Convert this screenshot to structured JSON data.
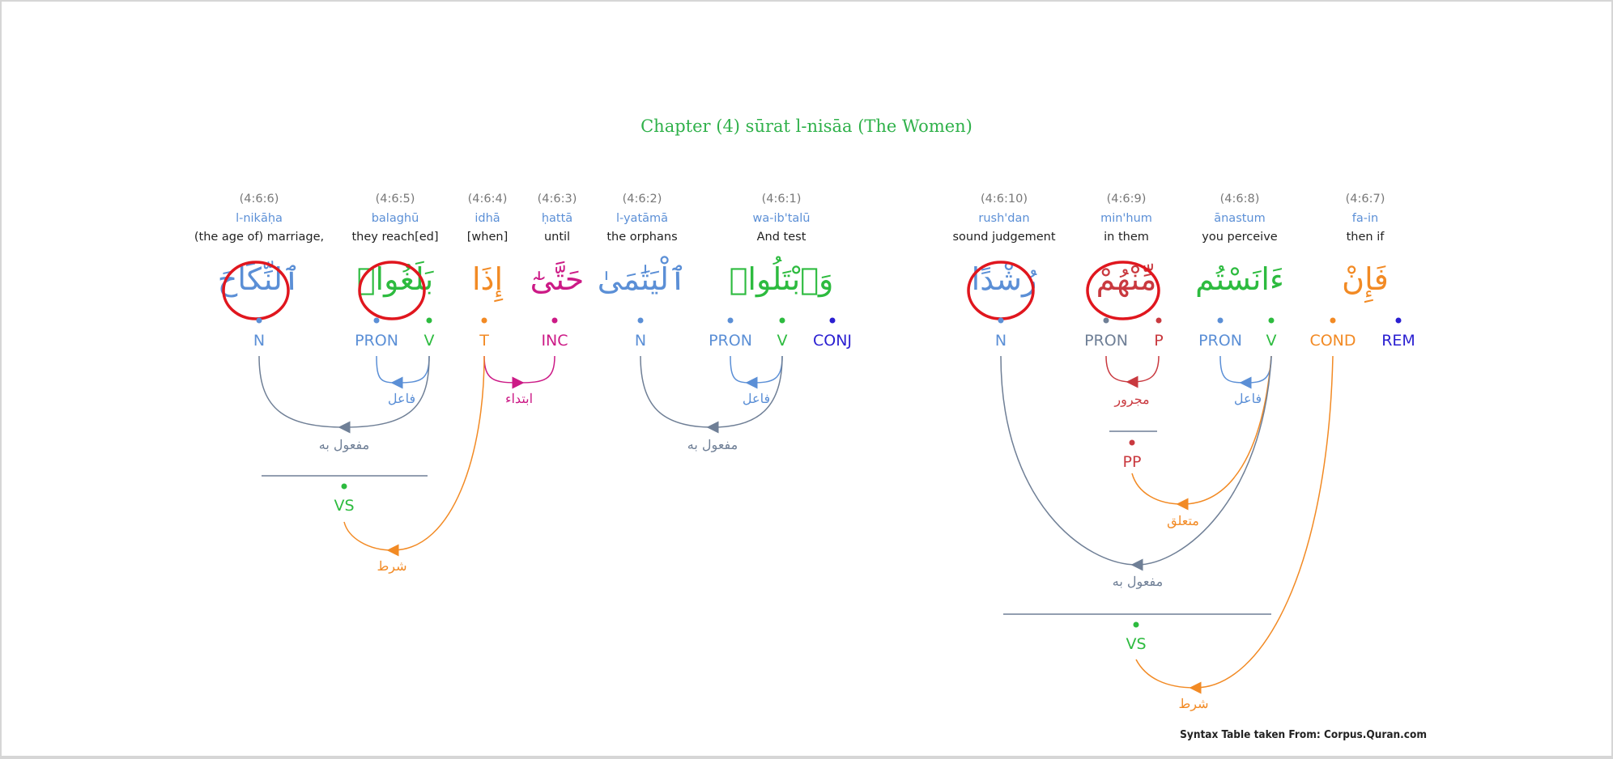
{
  "title": "Chapter (4) sūrat l-nisāa (The Women)",
  "credit": "Syntax Table taken From: Corpus.Quran.com",
  "colors": {
    "title": "#2fb14a",
    "noun": "#5b8fd6",
    "verb": "#2dbb3f",
    "pron": "#5b8fd6",
    "time": "#f28a24",
    "inc": "#cc1a86",
    "conj": "#2a1fd1",
    "prep": "#c9393f",
    "cond": "#f28a24",
    "rem": "#2a1fd1",
    "grey": "#6f7f96",
    "highlight": "#e0161e"
  },
  "words": [
    {
      "ref": "(4:6:6)",
      "translit": "l-nikāḥa",
      "gloss": "(the age of) marriage,",
      "arabic": "ٱلنِّكَاحَ"
    },
    {
      "ref": "(4:6:5)",
      "translit": "balaghū",
      "gloss": "they reach[ed]",
      "arabic": "بَلَغُوا۟"
    },
    {
      "ref": "(4:6:4)",
      "translit": "idhā",
      "gloss": "[when]",
      "arabic": "إِذَا"
    },
    {
      "ref": "(4:6:3)",
      "translit": "ḥattā",
      "gloss": "until",
      "arabic": "حَتَّىٰٓ"
    },
    {
      "ref": "(4:6:2)",
      "translit": "l-yatāmā",
      "gloss": "the orphans",
      "arabic": "ٱلْيَتَٰمَىٰ"
    },
    {
      "ref": "(4:6:1)",
      "translit": "wa-ib'talū",
      "gloss": "And test",
      "arabic": "وَٱبْتَلُوا۟"
    },
    {
      "ref": "(4:6:10)",
      "translit": "rush'dan",
      "gloss": "sound judgement",
      "arabic": "رُشْدًا"
    },
    {
      "ref": "(4:6:9)",
      "translit": "min'hum",
      "gloss": "in them",
      "arabic": "مِّنْهُمْ"
    },
    {
      "ref": "(4:6:8)",
      "translit": "ānastum",
      "gloss": "you perceive",
      "arabic": "ءَانَسْتُم"
    },
    {
      "ref": "(4:6:7)",
      "translit": "fa-in",
      "gloss": "then if",
      "arabic": "فَإِنْ"
    }
  ],
  "tags": {
    "n1": "N",
    "pron1": "PRON",
    "v1": "V",
    "t": "T",
    "inc": "INC",
    "n2": "N",
    "pron2": "PRON",
    "v2": "V",
    "conj": "CONJ",
    "vs1": "VS",
    "n3": "N",
    "pron3": "PRON",
    "p": "P",
    "pron4": "PRON",
    "v3": "V",
    "cond": "COND",
    "rem": "REM",
    "pp": "PP",
    "vs2": "VS"
  },
  "relations": {
    "fail1": "فاعل",
    "mafool1": "مفعول به",
    "ibtida": "ابتداء",
    "shart1": "شرط",
    "fail2": "فاعل",
    "mafool2": "مفعول به",
    "majrur": "مجرور",
    "fail3": "فاعل",
    "mutaallaq": "متعلق",
    "mafool3": "مفعول به",
    "shart2": "شرط"
  }
}
